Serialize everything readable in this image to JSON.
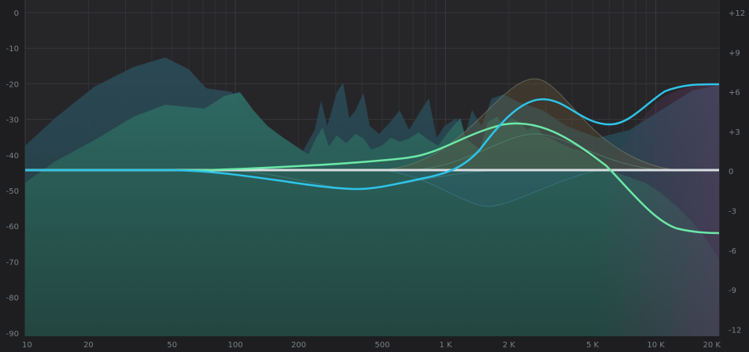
{
  "analyzer": {
    "db_scale": [
      "0",
      "-10",
      "-20",
      "-30",
      "-40",
      "-50",
      "-60",
      "-70",
      "-80",
      "-90"
    ],
    "gain_scale": [
      "+12",
      "+9",
      "+6",
      "+3",
      "0",
      "-3",
      "-6",
      "-9",
      "-12"
    ],
    "freq_scale": [
      "10",
      "20",
      "50",
      "100",
      "200",
      "500",
      "1 K",
      "2 K",
      "5 K",
      "10 K",
      "20 K"
    ]
  },
  "colors": {
    "background": "#1e1e20",
    "plot": "#27272a",
    "analyzer_fill": "#2f5f57",
    "band_blue": "#2ec4e8",
    "band_green": "#6ce8a8",
    "flat_line": "#d8dde0"
  }
}
